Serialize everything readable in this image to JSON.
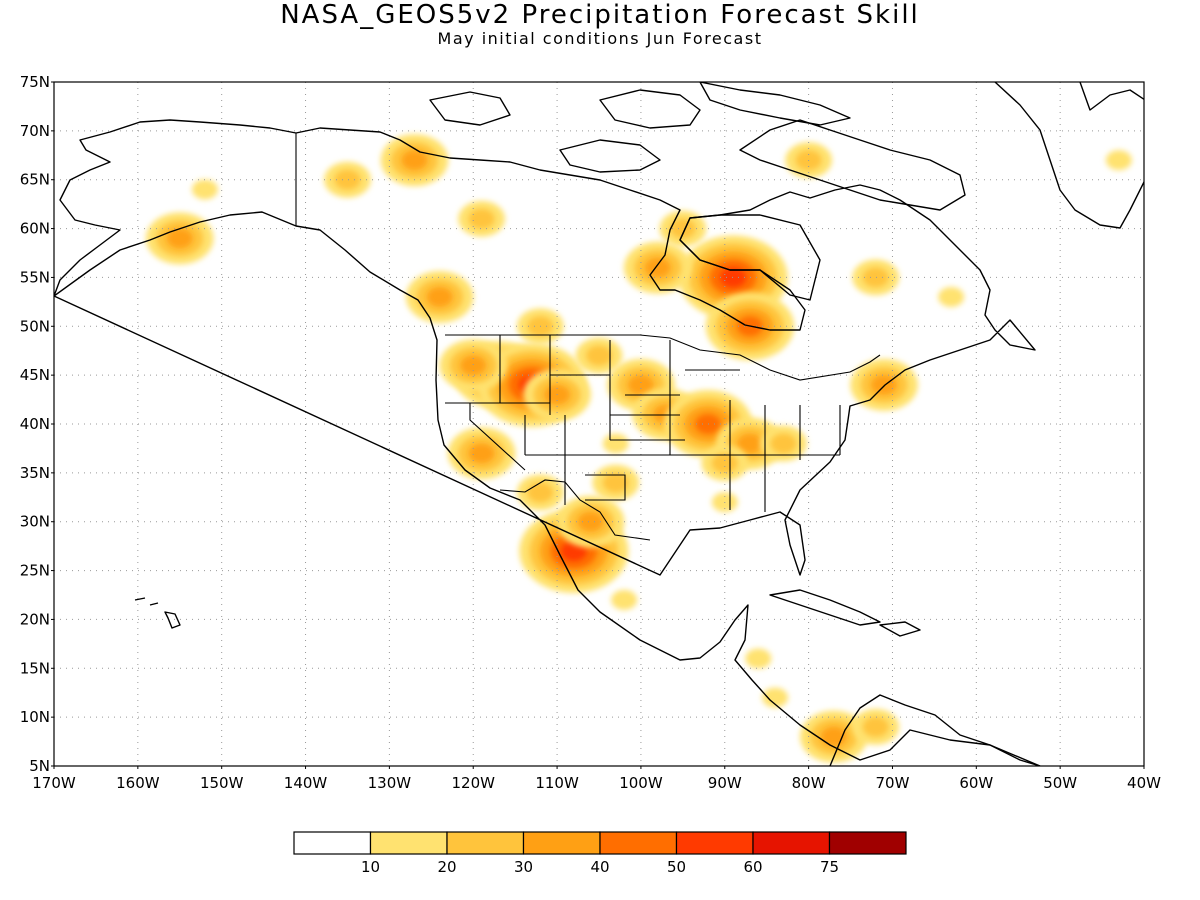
{
  "title": "NASA_GEOS5v2 Precipitation Forecast Skill",
  "subtitle": "May initial conditions  Jun Forecast",
  "map": {
    "lon_range": [
      -170,
      -40
    ],
    "lat_range": [
      5,
      75
    ],
    "lat_ticks": [
      "75N",
      "70N",
      "65N",
      "60N",
      "55N",
      "50N",
      "45N",
      "40N",
      "35N",
      "30N",
      "25N",
      "20N",
      "15N",
      "10N",
      "5N"
    ],
    "lon_ticks": [
      "170W",
      "160W",
      "150W",
      "140W",
      "130W",
      "120W",
      "110W",
      "100W",
      "90W",
      "80W",
      "70W",
      "60W",
      "50W",
      "40W"
    ],
    "gridlines": "dotted"
  },
  "colorbar": {
    "colors": [
      "#ffffff",
      "#ffe270",
      "#ffc43c",
      "#ffa014",
      "#ff6e00",
      "#ff3a00",
      "#e61400",
      "#a00000"
    ],
    "labels": [
      "10",
      "20",
      "30",
      "40",
      "50",
      "60",
      "75"
    ]
  },
  "skill_regions": [
    {
      "lon": -117,
      "lat": 45,
      "level": 4
    },
    {
      "lon": -113,
      "lat": 44,
      "level": 5
    },
    {
      "lon": -120,
      "lat": 46,
      "level": 3
    },
    {
      "lon": -110,
      "lat": 43,
      "level": 3
    },
    {
      "lon": -105,
      "lat": 47,
      "level": 2
    },
    {
      "lon": -100,
      "lat": 44,
      "level": 3
    },
    {
      "lon": -97,
      "lat": 41,
      "level": 3
    },
    {
      "lon": -92,
      "lat": 40,
      "level": 4
    },
    {
      "lon": -87,
      "lat": 38,
      "level": 3
    },
    {
      "lon": -83,
      "lat": 38,
      "level": 2
    },
    {
      "lon": -90,
      "lat": 36,
      "level": 2
    },
    {
      "lon": -89,
      "lat": 55,
      "level": 5
    },
    {
      "lon": -87,
      "lat": 50,
      "level": 4
    },
    {
      "lon": -98,
      "lat": 56,
      "level": 3
    },
    {
      "lon": -95,
      "lat": 60,
      "level": 2
    },
    {
      "lon": -112,
      "lat": 50,
      "level": 2
    },
    {
      "lon": -127,
      "lat": 67,
      "level": 3
    },
    {
      "lon": -135,
      "lat": 65,
      "level": 2
    },
    {
      "lon": -155,
      "lat": 59,
      "level": 3
    },
    {
      "lon": -152,
      "lat": 64,
      "level": 1
    },
    {
      "lon": -119,
      "lat": 61,
      "level": 2
    },
    {
      "lon": -124,
      "lat": 53,
      "level": 3
    },
    {
      "lon": -108,
      "lat": 27,
      "level": 5
    },
    {
      "lon": -106,
      "lat": 30,
      "level": 3
    },
    {
      "lon": -103,
      "lat": 34,
      "level": 2
    },
    {
      "lon": -112,
      "lat": 33,
      "level": 2
    },
    {
      "lon": -119,
      "lat": 37,
      "level": 3
    },
    {
      "lon": -90,
      "lat": 32,
      "level": 1
    },
    {
      "lon": -71,
      "lat": 44,
      "level": 3
    },
    {
      "lon": -77,
      "lat": 8,
      "level": 3
    },
    {
      "lon": -72,
      "lat": 9,
      "level": 2
    },
    {
      "lon": -72,
      "lat": 55,
      "level": 2
    },
    {
      "lon": -63,
      "lat": 53,
      "level": 1
    },
    {
      "lon": -43,
      "lat": 67,
      "level": 1
    },
    {
      "lon": -86,
      "lat": 16,
      "level": 1
    },
    {
      "lon": -84,
      "lat": 12,
      "level": 1
    },
    {
      "lon": -80,
      "lat": 67,
      "level": 2
    },
    {
      "lon": -102,
      "lat": 22,
      "level": 1
    },
    {
      "lon": -103,
      "lat": 38,
      "level": 1
    }
  ]
}
